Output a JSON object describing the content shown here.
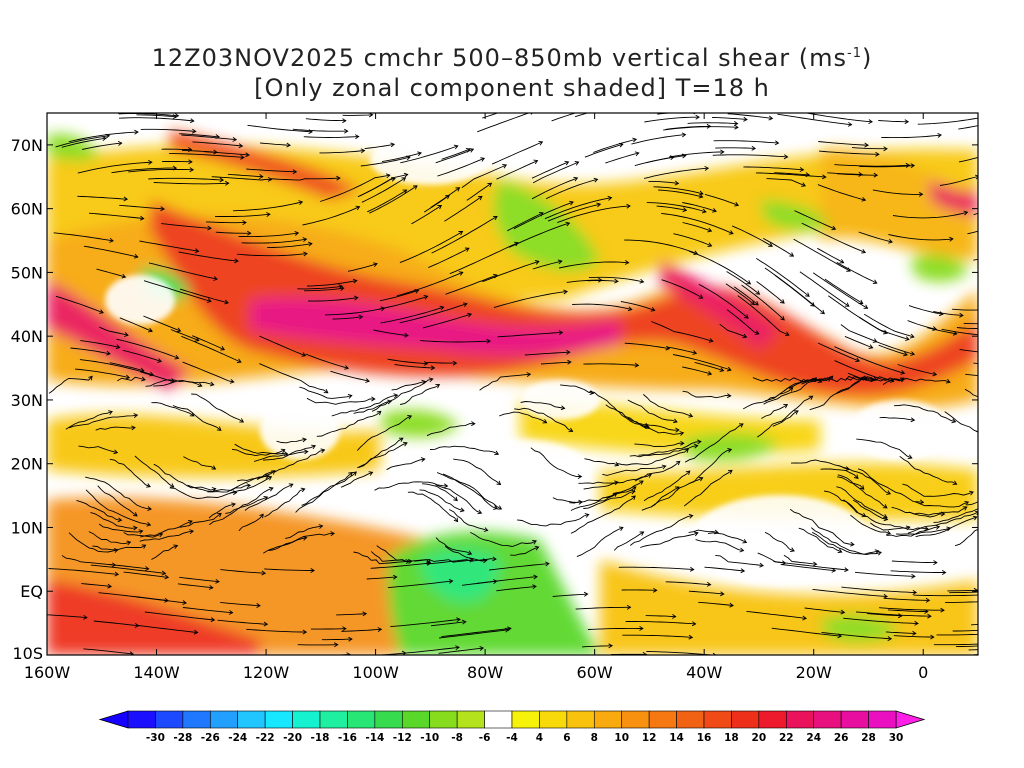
{
  "title": {
    "line1": "12Z03NOV2025 cmchr 500–850mb vertical shear (ms",
    "line1_sup": "-1",
    "line1_end": ")",
    "line2": "[Only zonal component shaded] T=18 h"
  },
  "map": {
    "lat_labels": [
      "70N",
      "60N",
      "50N",
      "40N",
      "30N",
      "20N",
      "10N",
      "EQ",
      "10S"
    ],
    "lon_labels": [
      "160W",
      "140W",
      "120W",
      "100W",
      "80W",
      "60W",
      "40W",
      "20W",
      "0"
    ]
  },
  "colorbar": {
    "labels": [
      "-30",
      "-28",
      "-26",
      "-24",
      "-22",
      "-20",
      "-18",
      "-16",
      "-14",
      "-12",
      "-10",
      "-8",
      "-6",
      "-4",
      "4",
      "6",
      "8",
      "10",
      "12",
      "14",
      "16",
      "18",
      "20",
      "22",
      "24",
      "26",
      "28",
      "30"
    ],
    "colors": [
      "#1a10ff",
      "#1e4aff",
      "#1f78ff",
      "#22a0ff",
      "#22c6ff",
      "#18e8ff",
      "#14f2d0",
      "#1ef0a0",
      "#28e676",
      "#36dc4e",
      "#5ad82a",
      "#88dc1e",
      "#b4e21c",
      "#ffffff",
      "#f6f20a",
      "#f8da0a",
      "#f9c20c",
      "#f9aa0e",
      "#f89010",
      "#f57812",
      "#f26214",
      "#f04a16",
      "#ee301a",
      "#ec1a2c",
      "#ea125a",
      "#e8107e",
      "#e80ea0",
      "#ea10c2"
    ],
    "left_arrow_color": "#1600ff",
    "right_arrow_color": "#ff20e8"
  }
}
